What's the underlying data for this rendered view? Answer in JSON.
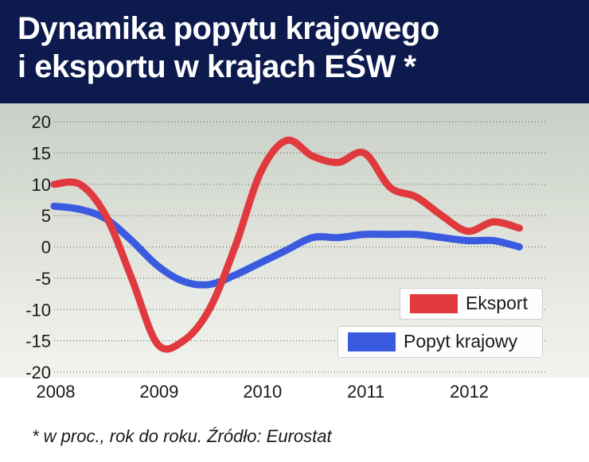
{
  "title_line1": "Dynamika popytu krajowego",
  "title_line2": "i eksportu w krajach EŚW *",
  "footnote": "* w proc., rok do roku. Źródło: Eurostat",
  "chart_data": {
    "type": "line",
    "title": "Dynamika popytu krajowego i eksportu w krajach EŚW *",
    "xlabel": "",
    "ylabel": "",
    "xlim": [
      2008,
      2012.75
    ],
    "ylim": [
      -20,
      20
    ],
    "x_ticks": [
      "2008",
      "2009",
      "2010",
      "2011",
      "2012"
    ],
    "y_ticks": [
      20,
      15,
      10,
      5,
      0,
      -5,
      -10,
      -15,
      -20
    ],
    "grid": "horizontal-dotted",
    "legend_position": "bottom-right",
    "series": [
      {
        "name": "Eksport",
        "color": "#e0393e",
        "x": [
          2008,
          2008.25,
          2008.5,
          2008.75,
          2009,
          2009.25,
          2009.5,
          2009.75,
          2010,
          2010.25,
          2010.5,
          2010.75,
          2011,
          2011.25,
          2011.5,
          2011.75,
          2012,
          2012.25,
          2012.5
        ],
        "values": [
          10,
          10,
          5,
          -5,
          -15.5,
          -15,
          -10,
          0,
          12,
          17,
          14.5,
          13.5,
          15,
          9.5,
          8,
          5,
          2.5,
          4,
          3
        ]
      },
      {
        "name": "Popyt krajowy",
        "color": "#3a5be0",
        "x": [
          2008,
          2008.25,
          2008.5,
          2008.75,
          2009,
          2009.25,
          2009.5,
          2009.75,
          2010,
          2010.25,
          2010.5,
          2010.75,
          2011,
          2011.25,
          2011.5,
          2011.75,
          2012,
          2012.25,
          2012.5
        ],
        "values": [
          6.5,
          6,
          4.5,
          1,
          -3,
          -5.5,
          -6,
          -4.5,
          -2.5,
          -0.5,
          1.5,
          1.5,
          2,
          2,
          2,
          1.5,
          1,
          1,
          0
        ]
      }
    ]
  }
}
